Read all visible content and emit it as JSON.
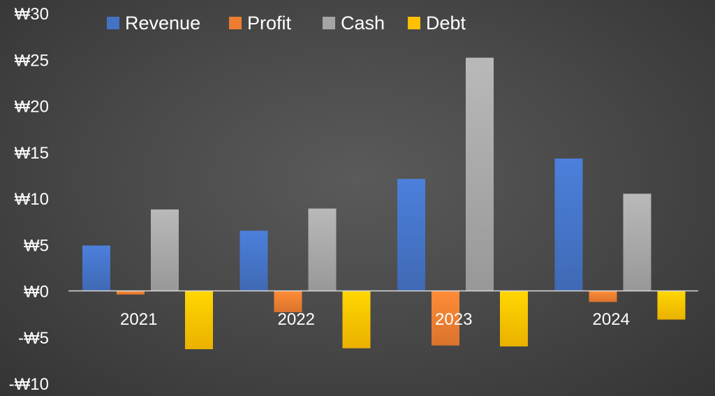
{
  "chart_data": {
    "type": "bar",
    "categories": [
      "2021",
      "2022",
      "2023",
      "2024"
    ],
    "series": [
      {
        "name": "Revenue",
        "color": "#4472c4",
        "values": [
          4.9,
          6.5,
          12.1,
          14.3
        ]
      },
      {
        "name": "Profit",
        "color": "#ed7d31",
        "values": [
          -0.4,
          -2.3,
          -5.9,
          -1.2
        ]
      },
      {
        "name": "Cash",
        "color": "#a5a5a5",
        "values": [
          8.8,
          8.9,
          25.2,
          10.5
        ]
      },
      {
        "name": "Debt",
        "color": "#ffc000",
        "values": [
          -6.3,
          -6.2,
          -6.0,
          -3.1
        ]
      }
    ],
    "yticks": [
      {
        "value": 30,
        "label": "₩30"
      },
      {
        "value": 25,
        "label": "₩25"
      },
      {
        "value": 20,
        "label": "₩20"
      },
      {
        "value": 15,
        "label": "₩15"
      },
      {
        "value": 10,
        "label": "₩10"
      },
      {
        "value": 5,
        "label": "₩5"
      },
      {
        "value": 0,
        "label": "₩0"
      },
      {
        "value": -5,
        "label": "-₩5"
      },
      {
        "value": -10,
        "label": "-₩10"
      }
    ],
    "ylim": [
      -10,
      30
    ],
    "title": "",
    "xlabel": "",
    "ylabel": "",
    "grid": false,
    "legend_position": "top-left"
  }
}
